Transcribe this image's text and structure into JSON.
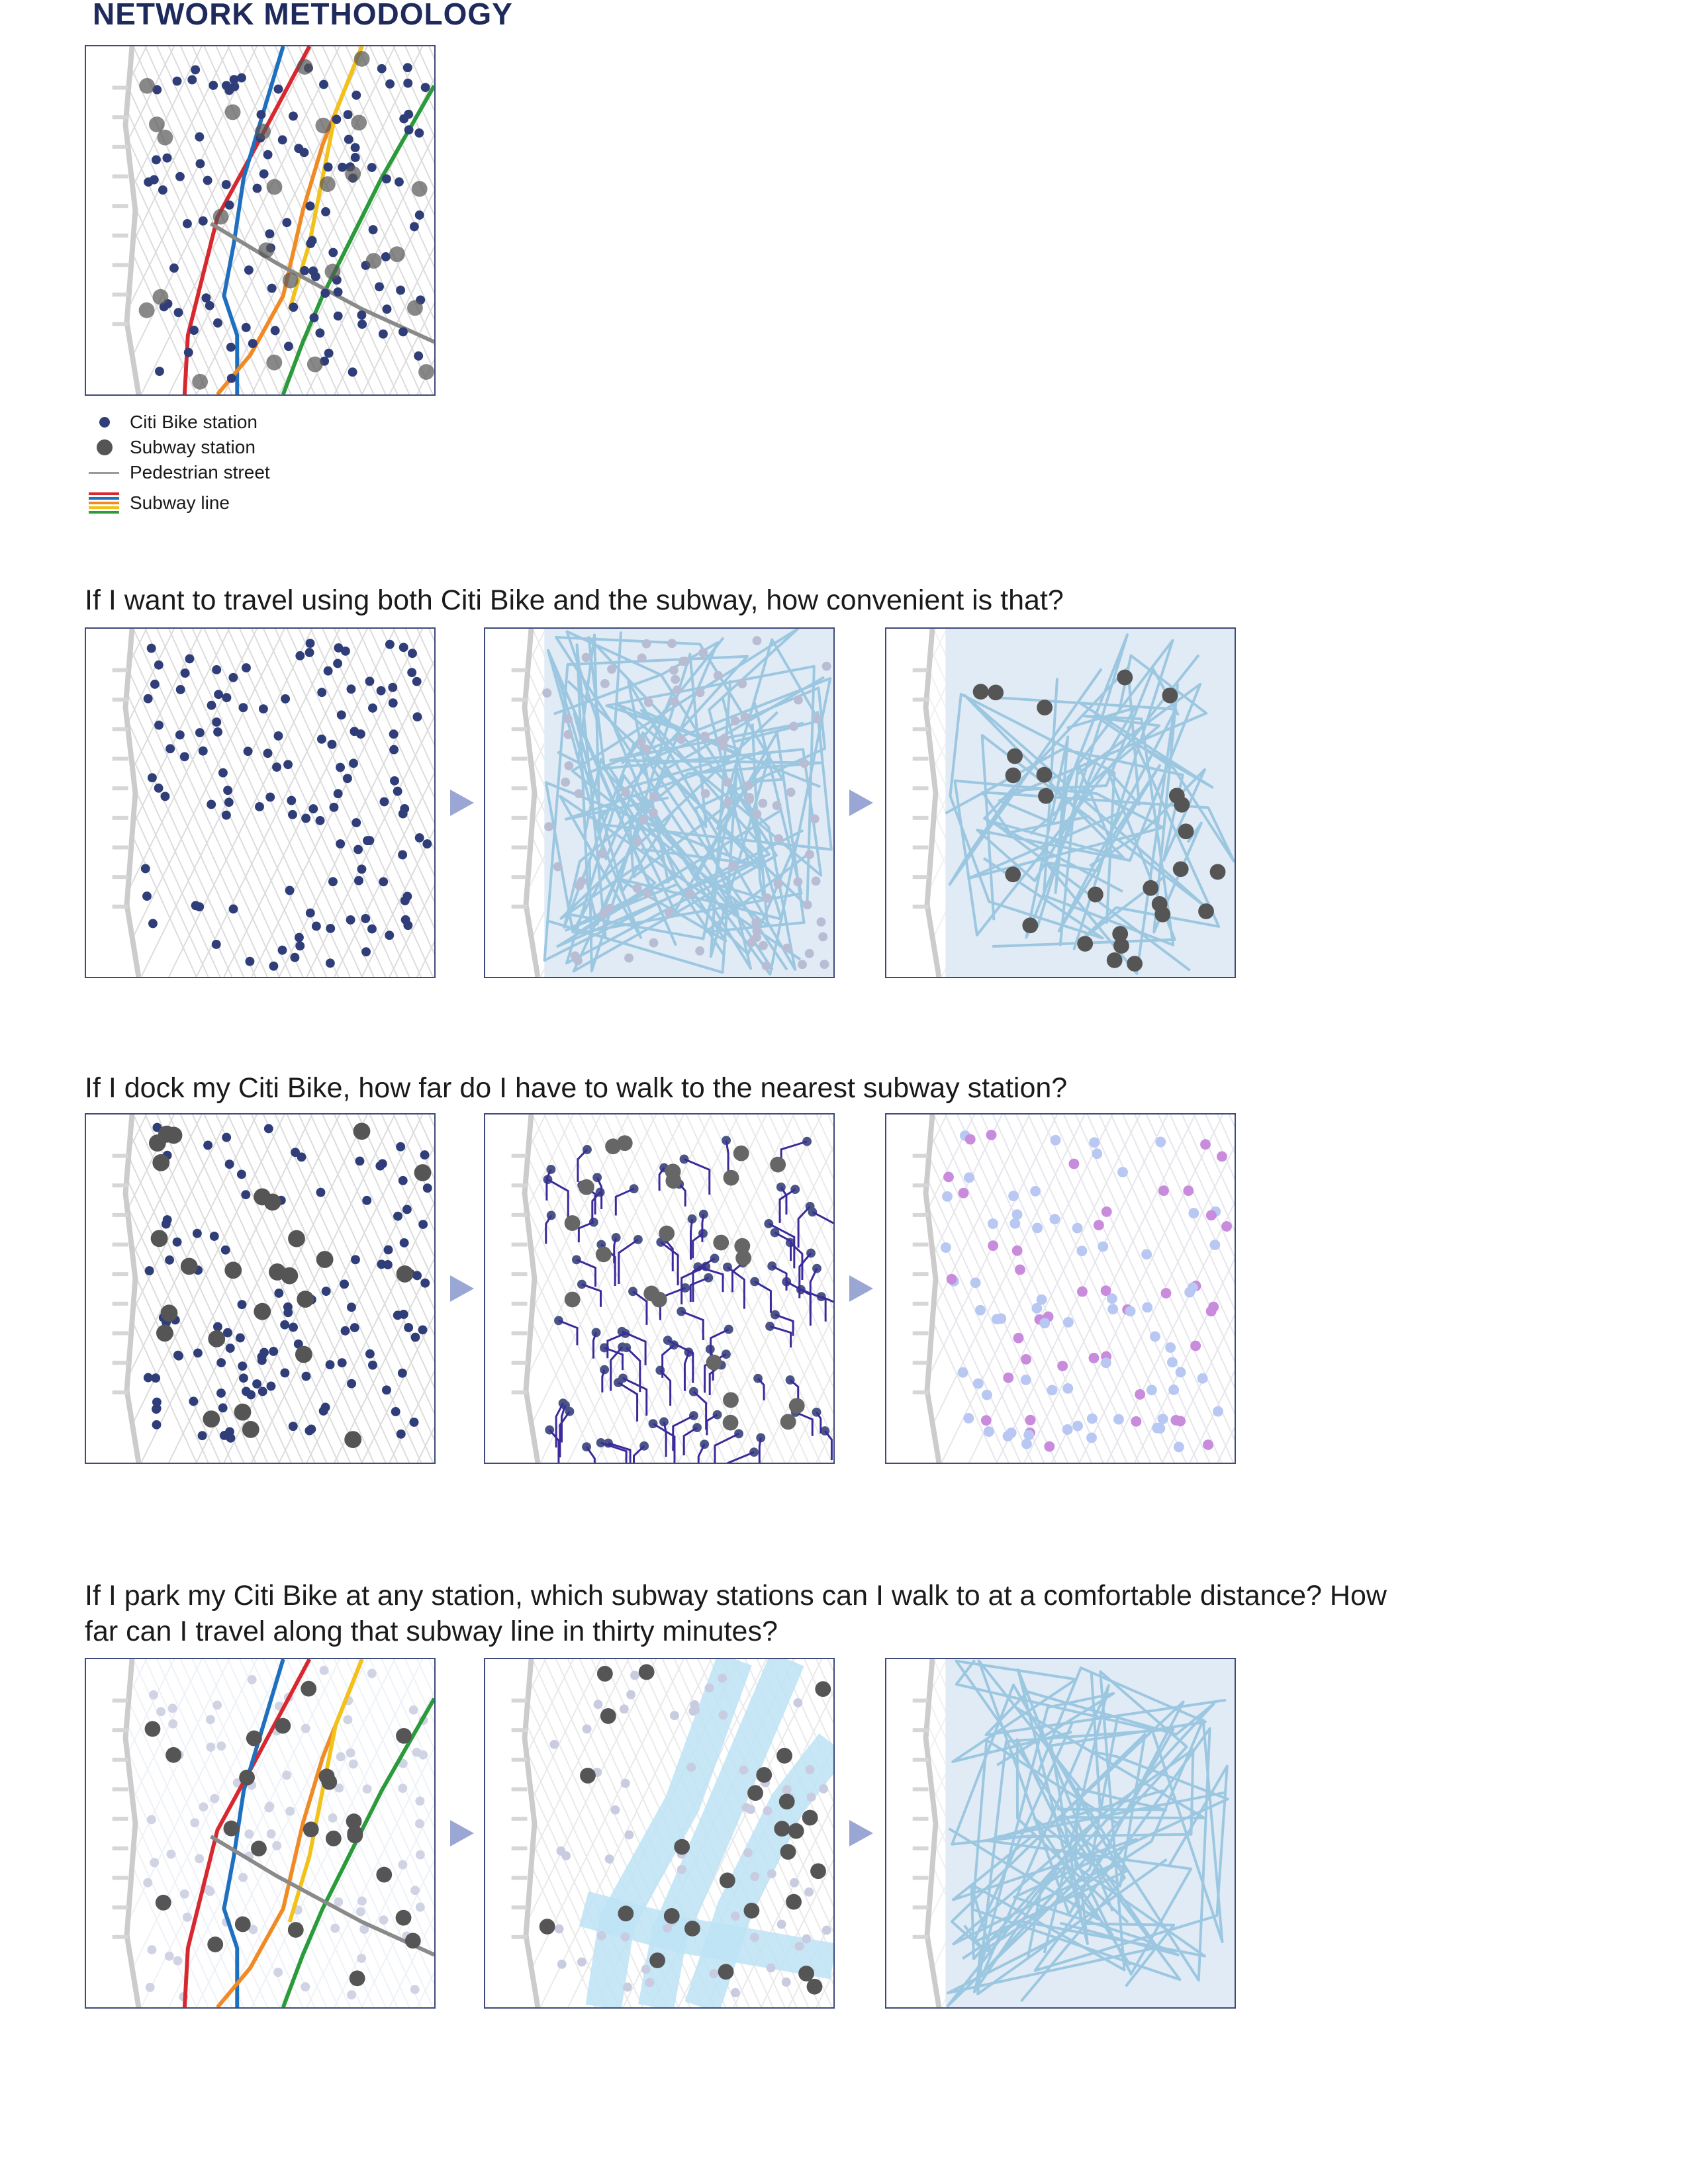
{
  "page": {
    "title": "NETWORK METHODOLOGY"
  },
  "legend": {
    "items": [
      {
        "label": "Citi Bike station",
        "symbol": "small-dot",
        "color": "#2f3d78"
      },
      {
        "label": "Subway station",
        "symbol": "large-dot",
        "color": "#555555"
      },
      {
        "label": "Pedestrian street",
        "symbol": "line",
        "color": "#9a9a9a"
      },
      {
        "label": "Subway line",
        "symbol": "multi-line",
        "colors": [
          "#d7282f",
          "#1f6fbf",
          "#f08a24",
          "#f2c21b",
          "#2a9a3a"
        ]
      }
    ]
  },
  "questions": [
    {
      "text": "If I want to travel using both Citi Bike and the subway, how convenient is that?"
    },
    {
      "text": "If I dock my Citi Bike, how far do I have to walk to the nearest subway station?"
    },
    {
      "text": "If I park my Citi Bike at any station, which subway stations can I walk to at a comfortable distance? How far can I travel along that subway line in thirty minutes?"
    }
  ],
  "colors": {
    "citibike": "#2f3d78",
    "subway": "#555555",
    "street": "#dcdcdc",
    "zone_fill": "#e1ebf6",
    "zone_stroke": "#9cc7e0",
    "walk_path": "#3a2a9a",
    "near": "#b8c8f2",
    "far": "#c98bdc",
    "arrow": "#9aa6d3",
    "border": "#3d4a7a"
  }
}
